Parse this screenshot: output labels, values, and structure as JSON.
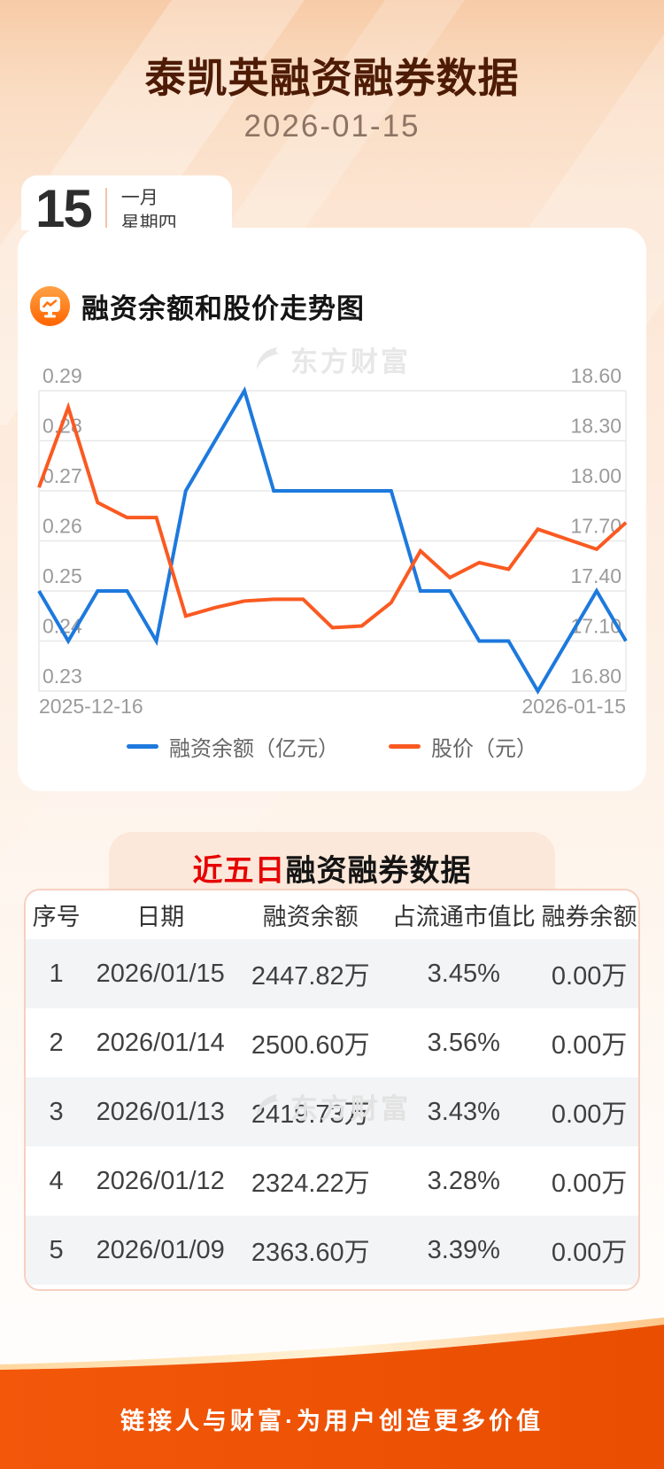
{
  "page": {
    "title": "泰凯英融资融券数据",
    "date": "2026-01-15",
    "calendar": {
      "day": "15",
      "month": "一月",
      "weekday": "星期四"
    },
    "watermark": "东方财富",
    "footer_text": "链接人与财富·为用户创造更多价值"
  },
  "chart_section": {
    "title": "融资余额和股价走势图",
    "x_start_label": "2025-12-16",
    "x_end_label": "2026-01-15",
    "legend": [
      {
        "label": "融资余额（亿元）",
        "color": "#1d79dd"
      },
      {
        "label": "股价（元）",
        "color": "#fa5a21"
      }
    ]
  },
  "chart_data": {
    "type": "line",
    "title": "融资余额和股价走势图",
    "x": [
      "2025-12-16",
      "2025-12-17",
      "2025-12-18",
      "2025-12-19",
      "2025-12-22",
      "2025-12-23",
      "2025-12-24",
      "2025-12-25",
      "2025-12-26",
      "2025-12-29",
      "2025-12-30",
      "2025-12-31",
      "2026-01-05",
      "2026-01-06",
      "2026-01-07",
      "2026-01-08",
      "2026-01-09",
      "2026-01-12",
      "2026-01-13",
      "2026-01-14",
      "2026-01-15"
    ],
    "series": [
      {
        "name": "融资余额（亿元）",
        "axis": "left",
        "color": "#1d79dd",
        "values": [
          0.25,
          0.24,
          0.25,
          0.25,
          0.24,
          0.27,
          0.28,
          0.29,
          0.27,
          0.27,
          0.27,
          0.27,
          0.27,
          0.25,
          0.25,
          0.24,
          0.24,
          0.23,
          0.24,
          0.25,
          0.24
        ]
      },
      {
        "name": "股价（元）",
        "axis": "right",
        "color": "#fa5a21",
        "values": [
          18.02,
          18.5,
          17.93,
          17.84,
          17.84,
          17.25,
          17.3,
          17.34,
          17.35,
          17.35,
          17.18,
          17.19,
          17.33,
          17.64,
          17.48,
          17.57,
          17.53,
          17.77,
          17.71,
          17.65,
          17.81
        ]
      }
    ],
    "left_axis": {
      "min": 0.23,
      "max": 0.29,
      "tick_labels": [
        "0.29",
        "0.28",
        "0.27",
        "0.26",
        "0.25",
        "0.24",
        "0.23"
      ]
    },
    "right_axis": {
      "min": 16.8,
      "max": 18.6,
      "tick_labels": [
        "18.60",
        "18.30",
        "18.00",
        "17.70",
        "17.40",
        "17.10",
        "16.80"
      ]
    },
    "grid": true,
    "legend_position": "bottom",
    "grid_color": "#e8e8e8",
    "axis_label_color": "#9b9b9b"
  },
  "table_section": {
    "title_highlight": "近五日",
    "title_rest": "融资融券数据",
    "columns": [
      "序号",
      "日期",
      "融资余额",
      "占流通市值比",
      "融券余额"
    ],
    "rows": [
      [
        "1",
        "2026/01/15",
        "2447.82万",
        "3.45%",
        "0.00万"
      ],
      [
        "2",
        "2026/01/14",
        "2500.60万",
        "3.56%",
        "0.00万"
      ],
      [
        "3",
        "2026/01/13",
        "2419.73万",
        "3.43%",
        "0.00万"
      ],
      [
        "4",
        "2026/01/12",
        "2324.22万",
        "3.28%",
        "0.00万"
      ],
      [
        "5",
        "2026/01/09",
        "2363.60万",
        "3.39%",
        "0.00万"
      ]
    ]
  }
}
